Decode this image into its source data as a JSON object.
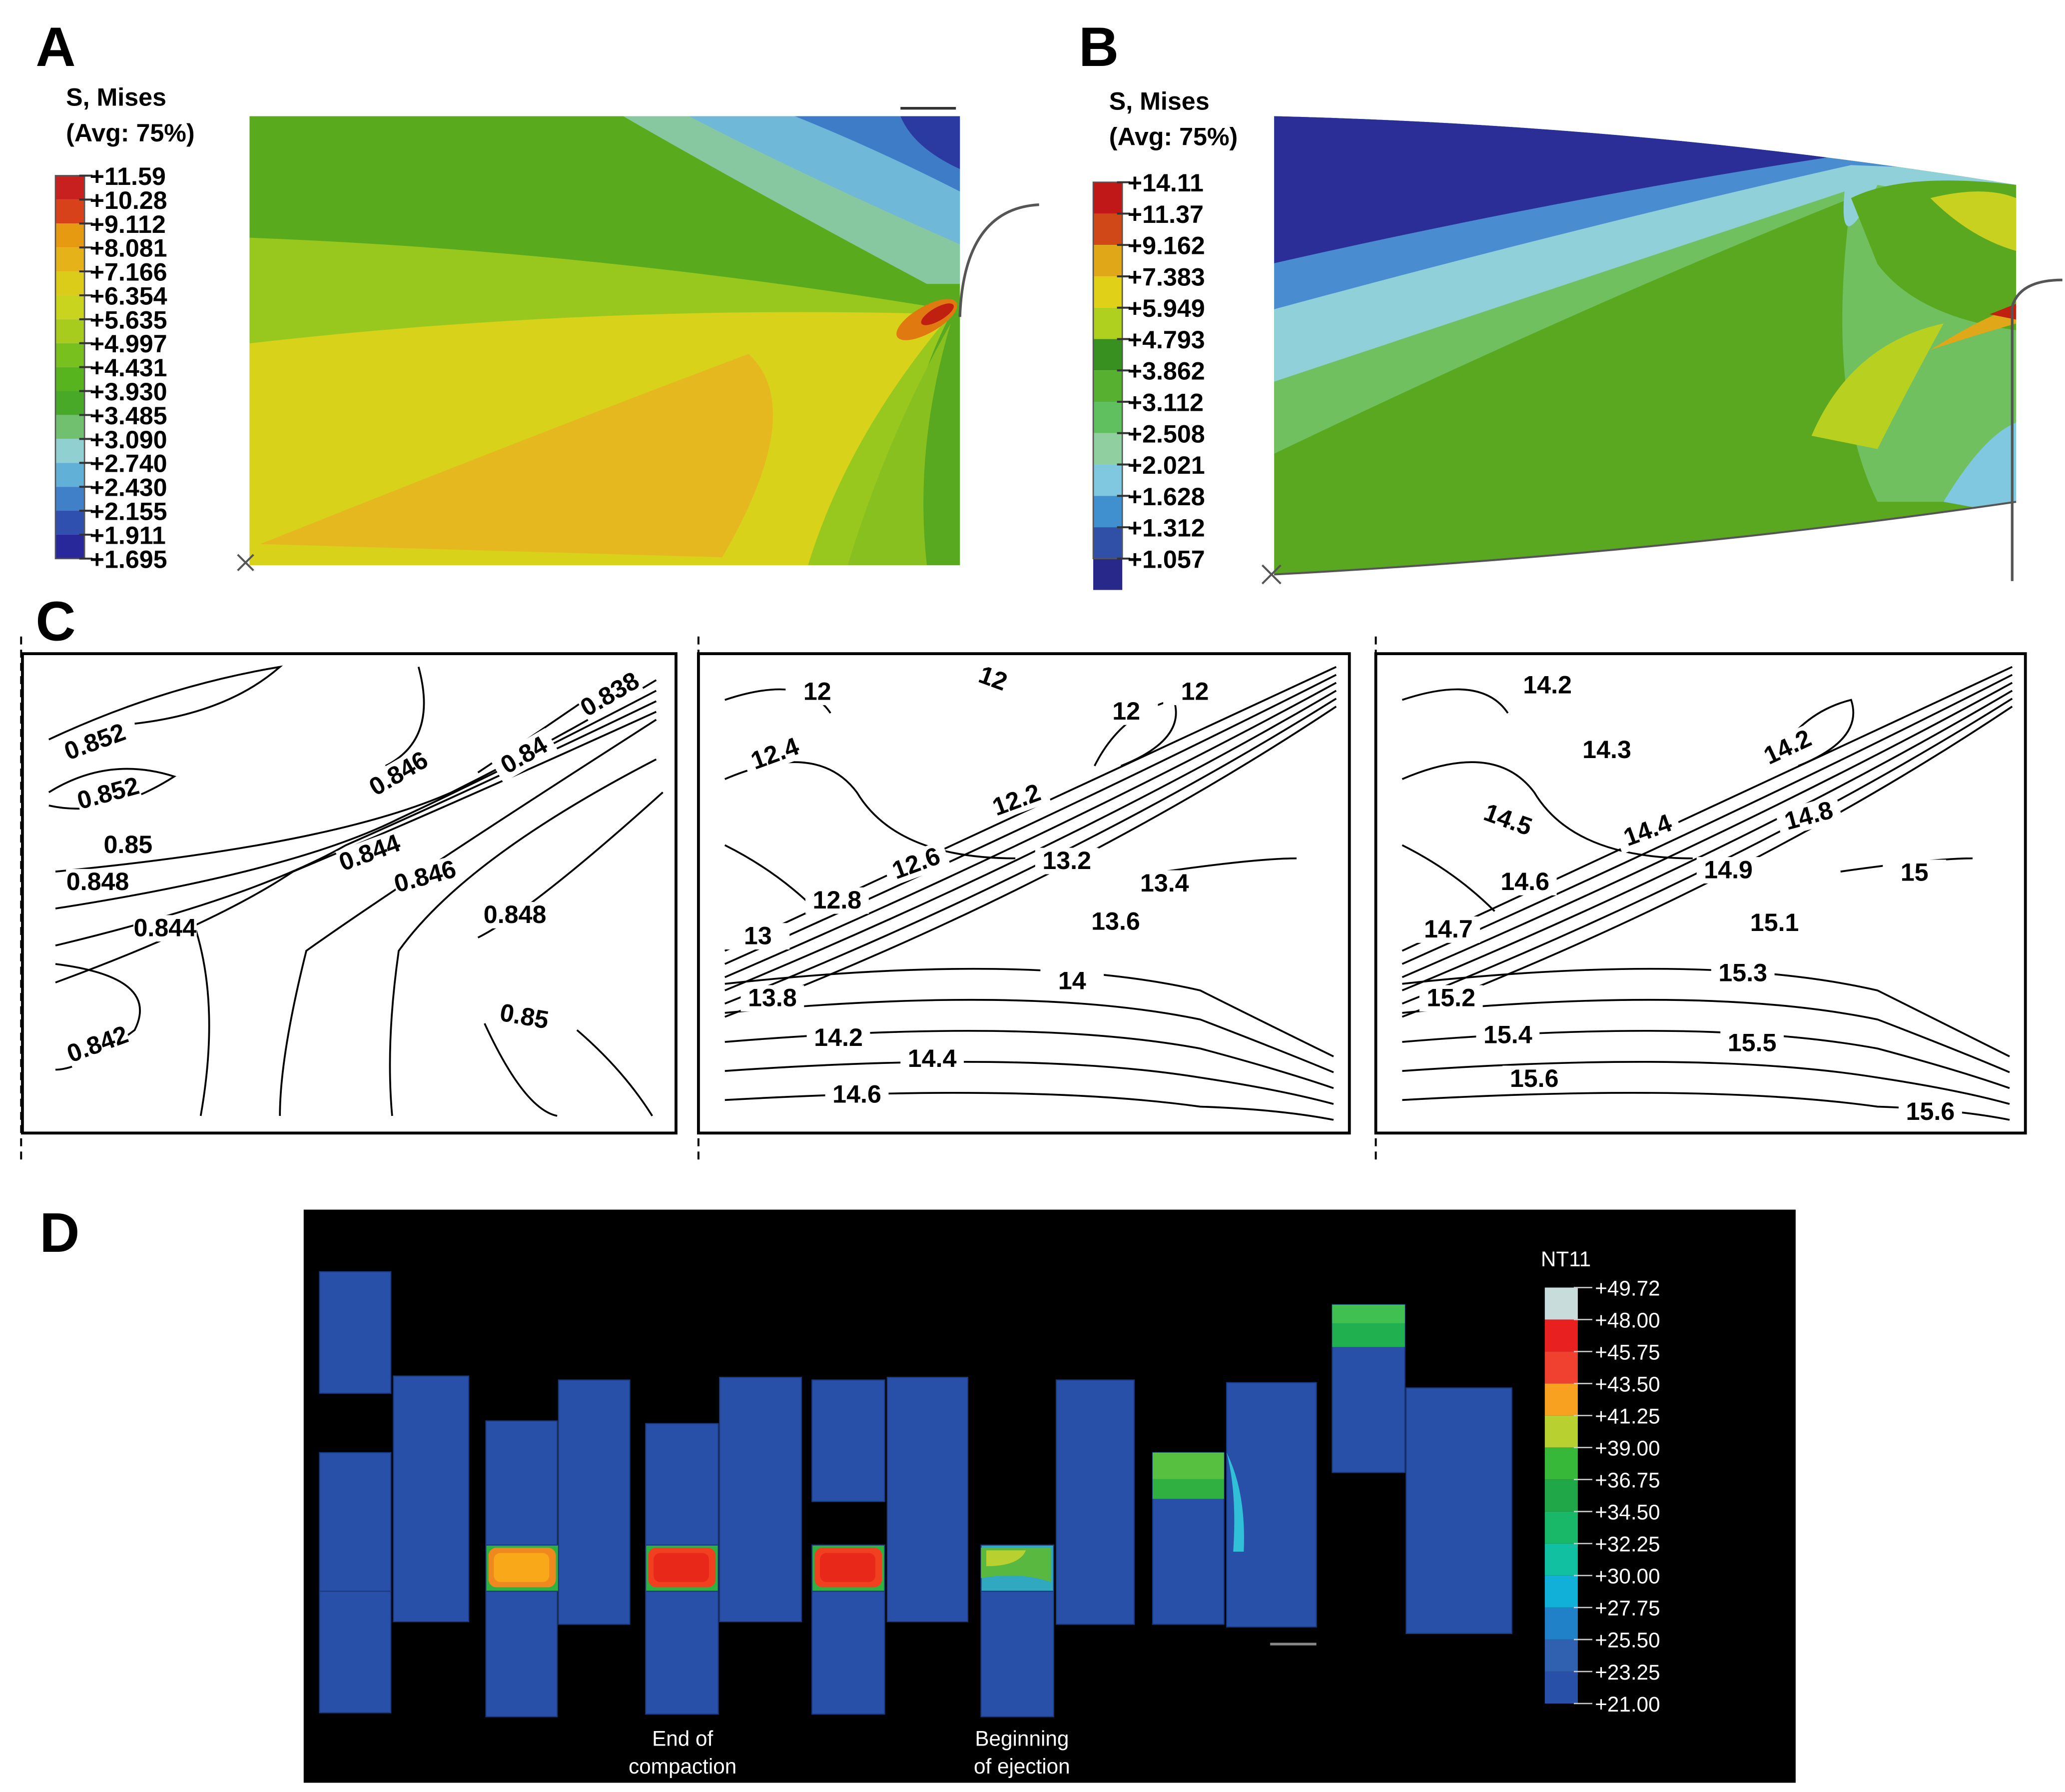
{
  "panels": {
    "A": {
      "label": "A",
      "legend_title": [
        "S, Mises",
        "(Avg: 75%)"
      ],
      "legend_values": [
        "+11.59",
        "+10.28",
        "+9.112",
        "+8.081",
        "+7.166",
        "+6.354",
        "+5.635",
        "+4.997",
        "+4.431",
        "+3.930",
        "+3.485",
        "+3.090",
        "+2.740",
        "+2.430",
        "+2.155",
        "+1.911",
        "+1.695"
      ]
    },
    "B": {
      "label": "B",
      "legend_title": [
        "S, Mises",
        "(Avg: 75%)"
      ],
      "legend_values": [
        "+14.11",
        "+11.37",
        "+9.162",
        "+7.383",
        "+5.949",
        "+4.793",
        "+3.862",
        "+3.112",
        "+2.508",
        "+2.021",
        "+1.628",
        "+1.312",
        "+1.057"
      ]
    },
    "C": {
      "label": "C",
      "plots": [
        {
          "contour_labels": [
            "0.852",
            "0.852",
            "0.85",
            "0.848",
            "0.844",
            "0.842",
            "0.846",
            "0.84",
            "0.838",
            "0.844",
            "0.846",
            "0.848",
            "0.85"
          ]
        },
        {
          "contour_labels": [
            "12",
            "12",
            "12",
            "12",
            "12.4",
            "12.2",
            "12.6",
            "12.8",
            "13.2",
            "13.4",
            "13",
            "13.6",
            "13.8",
            "14",
            "14.2",
            "14.4",
            "14.6"
          ]
        },
        {
          "contour_labels": [
            "14.2",
            "14.3",
            "14.2",
            "14.5",
            "14.4",
            "14.8",
            "14.6",
            "14.9",
            "15",
            "14.7",
            "15.1",
            "15.2",
            "15.3",
            "15.4",
            "15.5",
            "15.6",
            "15.6"
          ]
        }
      ]
    },
    "D": {
      "label": "D",
      "legend_title": "NT11",
      "legend_values": [
        "+49.72",
        "+48.00",
        "+45.75",
        "+43.50",
        "+41.25",
        "+39.00",
        "+36.75",
        "+34.50",
        "+32.25",
        "+30.00",
        "+27.75",
        "+25.50",
        "+23.25",
        "+21.00"
      ],
      "annotations": [
        [
          "End of",
          "compaction"
        ],
        [
          "Beginning",
          "of ejection"
        ]
      ]
    }
  }
}
